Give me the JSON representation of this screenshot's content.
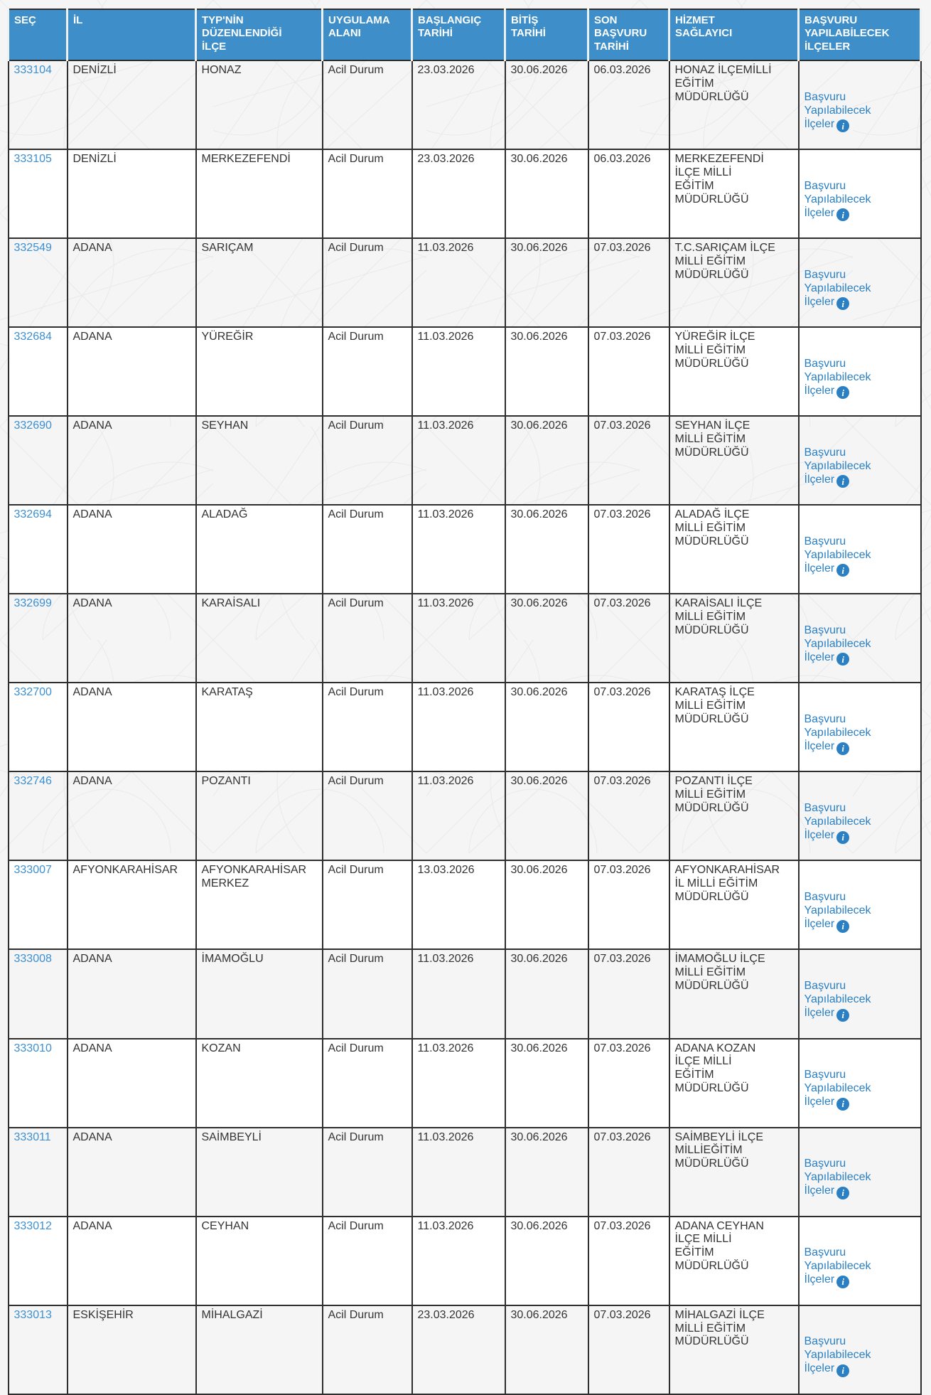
{
  "colors": {
    "page_background": "#f5f5f6",
    "pattern_line": "#e9e9eb",
    "header_background": "#3d8ec9",
    "header_text": "#ffffff",
    "cell_text": "#333333",
    "border": "#2e2e2e",
    "row_alternate": "#ffffff",
    "id_link": "#3c90d2",
    "apply_link": "#2b80c4"
  },
  "table": {
    "columns": [
      "SEÇ",
      "İL",
      "TYP'NİN\nDÜZENLENDİĞİ\nİLÇE",
      "UYGULAMA\nALANI",
      "BAŞLANGIÇ\nTARİHİ",
      "BİTİŞ\nTARİHİ",
      "SON\nBAŞVURU\nTARİHİ",
      "HİZMET\nSAĞLAYICI",
      "BAŞVURU\nYAPILABİLECEK\nİLÇELER"
    ],
    "apply_link_label": "Başvuru\nYapılabilecek\nİlçeler",
    "info_icon_glyph": "i",
    "rows": [
      {
        "sec": "333104",
        "il": "DENİZLİ",
        "ilce": "HONAZ",
        "uygulama_alani": "Acil Durum",
        "baslangic_tarihi": "23.03.2026",
        "bitis_tarihi": "30.06.2026",
        "son_basvuru_tarihi": "06.03.2026",
        "hizmet_saglayici": "HONAZ İLÇEMİLLİ\nEĞİTİM\nMÜDÜRLÜĞÜ"
      },
      {
        "sec": "333105",
        "il": "DENİZLİ",
        "ilce": "MERKEZEFENDİ",
        "uygulama_alani": "Acil Durum",
        "baslangic_tarihi": "23.03.2026",
        "bitis_tarihi": "30.06.2026",
        "son_basvuru_tarihi": "06.03.2026",
        "hizmet_saglayici": "MERKEZEFENDİ\nİLÇE MİLLİ\nEĞİTİM\nMÜDÜRLÜĞÜ"
      },
      {
        "sec": "332549",
        "il": "ADANA",
        "ilce": "SARIÇAM",
        "uygulama_alani": "Acil Durum",
        "baslangic_tarihi": "11.03.2026",
        "bitis_tarihi": "30.06.2026",
        "son_basvuru_tarihi": "07.03.2026",
        "hizmet_saglayici": "T.C.SARIÇAM İLÇE\nMİLLİ EĞİTİM\nMÜDÜRLÜĞÜ"
      },
      {
        "sec": "332684",
        "il": "ADANA",
        "ilce": "YÜREĞİR",
        "uygulama_alani": "Acil Durum",
        "baslangic_tarihi": "11.03.2026",
        "bitis_tarihi": "30.06.2026",
        "son_basvuru_tarihi": "07.03.2026",
        "hizmet_saglayici": "YÜREĞİR İLÇE\nMİLLİ EĞİTİM\nMÜDÜRLÜĞÜ"
      },
      {
        "sec": "332690",
        "il": "ADANA",
        "ilce": "SEYHAN",
        "uygulama_alani": "Acil Durum",
        "baslangic_tarihi": "11.03.2026",
        "bitis_tarihi": "30.06.2026",
        "son_basvuru_tarihi": "07.03.2026",
        "hizmet_saglayici": "SEYHAN İLÇE\nMİLLİ EĞİTİM\nMÜDÜRLÜĞÜ"
      },
      {
        "sec": "332694",
        "il": "ADANA",
        "ilce": "ALADAĞ",
        "uygulama_alani": "Acil Durum",
        "baslangic_tarihi": "11.03.2026",
        "bitis_tarihi": "30.06.2026",
        "son_basvuru_tarihi": "07.03.2026",
        "hizmet_saglayici": "ALADAĞ İLÇE\nMİLLİ EĞİTİM\nMÜDÜRLÜĞÜ"
      },
      {
        "sec": "332699",
        "il": "ADANA",
        "ilce": "KARAİSALI",
        "uygulama_alani": "Acil Durum",
        "baslangic_tarihi": "11.03.2026",
        "bitis_tarihi": "30.06.2026",
        "son_basvuru_tarihi": "07.03.2026",
        "hizmet_saglayici": "KARAİSALI İLÇE\nMİLLİ EĞİTİM\nMÜDÜRLÜĞÜ"
      },
      {
        "sec": "332700",
        "il": "ADANA",
        "ilce": "KARATAŞ",
        "uygulama_alani": "Acil Durum",
        "baslangic_tarihi": "11.03.2026",
        "bitis_tarihi": "30.06.2026",
        "son_basvuru_tarihi": "07.03.2026",
        "hizmet_saglayici": "KARATAŞ İLÇE\nMİLLİ EĞİTİM\nMÜDÜRLÜĞÜ"
      },
      {
        "sec": "332746",
        "il": "ADANA",
        "ilce": "POZANTI",
        "uygulama_alani": "Acil Durum",
        "baslangic_tarihi": "11.03.2026",
        "bitis_tarihi": "30.06.2026",
        "son_basvuru_tarihi": "07.03.2026",
        "hizmet_saglayici": "POZANTI İLÇE\nMİLLİ EĞİTİM\nMÜDÜRLÜĞÜ"
      },
      {
        "sec": "333007",
        "il": "AFYONKARAHİSAR",
        "ilce": "AFYONKARAHİSAR MERKEZ",
        "uygulama_alani": "Acil Durum",
        "baslangic_tarihi": "13.03.2026",
        "bitis_tarihi": "30.06.2026",
        "son_basvuru_tarihi": "07.03.2026",
        "hizmet_saglayici": "AFYONKARAHİSAR\nİL MİLLİ EĞİTİM\nMÜDÜRLÜĞÜ"
      },
      {
        "sec": "333008",
        "il": "ADANA",
        "ilce": "İMAMOĞLU",
        "uygulama_alani": "Acil Durum",
        "baslangic_tarihi": "11.03.2026",
        "bitis_tarihi": "30.06.2026",
        "son_basvuru_tarihi": "07.03.2026",
        "hizmet_saglayici": "İMAMOĞLU İLÇE\nMİLLİ EĞİTİM\nMÜDÜRLÜĞÜ"
      },
      {
        "sec": "333010",
        "il": "ADANA",
        "ilce": "KOZAN",
        "uygulama_alani": "Acil Durum",
        "baslangic_tarihi": "11.03.2026",
        "bitis_tarihi": "30.06.2026",
        "son_basvuru_tarihi": "07.03.2026",
        "hizmet_saglayici": "ADANA KOZAN\nİLÇE MİLLİ\nEĞİTİM\nMÜDÜRLÜĞÜ"
      },
      {
        "sec": "333011",
        "il": "ADANA",
        "ilce": "SAİMBEYLİ",
        "uygulama_alani": "Acil Durum",
        "baslangic_tarihi": "11.03.2026",
        "bitis_tarihi": "30.06.2026",
        "son_basvuru_tarihi": "07.03.2026",
        "hizmet_saglayici": "SAİMBEYLİ İLÇE\nMİLLİEĞİTİM\nMÜDÜRLÜĞÜ"
      },
      {
        "sec": "333012",
        "il": "ADANA",
        "ilce": "CEYHAN",
        "uygulama_alani": "Acil Durum",
        "baslangic_tarihi": "11.03.2026",
        "bitis_tarihi": "30.06.2026",
        "son_basvuru_tarihi": "07.03.2026",
        "hizmet_saglayici": "ADANA CEYHAN\nİLÇE MİLLİ\nEĞİTİM\nMÜDÜRLÜĞÜ"
      },
      {
        "sec": "333013",
        "il": "ESKİŞEHİR",
        "ilce": "MİHALGAZİ",
        "uygulama_alani": "Acil Durum",
        "baslangic_tarihi": "23.03.2026",
        "bitis_tarihi": "30.06.2026",
        "son_basvuru_tarihi": "07.03.2026",
        "hizmet_saglayici": "MİHALGAZİ İLÇE\nMİLLİ EĞİTİM\nMÜDÜRLÜĞÜ"
      }
    ]
  }
}
